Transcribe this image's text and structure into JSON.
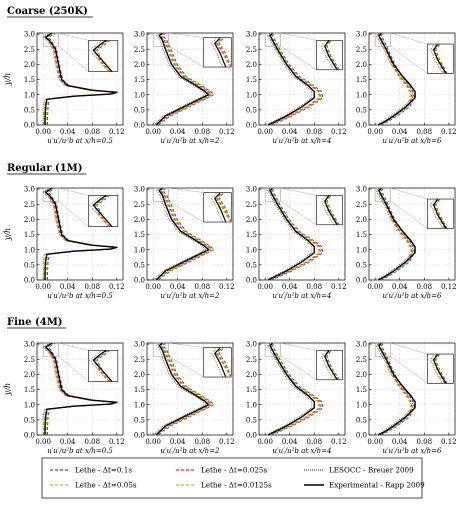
{
  "colors": {
    "lethe_dt_0.1s": "#2a4fcf",
    "lethe_dt_0.05s": "#8fd12e",
    "lethe_dt_0.025s": "#e02a2a",
    "lethe_dt_0.0125s": "#f0a020",
    "lesocc": "#222222",
    "experimental": "#000000",
    "grid": "#bbbbbb"
  },
  "legend": {
    "entries": [
      {
        "key": "lethe_dt_0.1s",
        "label": "Lethe - Δt=0.1s",
        "style": "dashed"
      },
      {
        "key": "lethe_dt_0.05s",
        "label": "Lethe - Δt=0.05s",
        "style": "dashed"
      },
      {
        "key": "lethe_dt_0.025s",
        "label": "Lethe - Δt=0.025s",
        "style": "dashed"
      },
      {
        "key": "lethe_dt_0.0125s",
        "label": "Lethe - Δt=0.0125s",
        "style": "dashed"
      },
      {
        "key": "lesocc",
        "label": "LESOCC - Breuer 2009",
        "style": "dotted"
      },
      {
        "key": "experimental",
        "label": "Experimental - Rapp 2009",
        "style": "solid"
      }
    ]
  },
  "rows": [
    {
      "title": "Coarse (250K)"
    },
    {
      "title": "Regular (1M)"
    },
    {
      "title": "Fine (4M)"
    }
  ],
  "axes": {
    "ylabel": "y/h",
    "yticks": [
      "0.0",
      "0.5",
      "1.0",
      "1.5",
      "2.0",
      "2.5",
      "3.0"
    ],
    "xticks": [
      "0.00",
      "0.04",
      "0.08",
      "0.12"
    ],
    "xlabels": [
      "u′u′/u²b at x/h=0.5",
      "u′u′/u²b at x/h=2",
      "u′u′/u²b at x/h=4",
      "u′u′/u²b at x/h=6"
    ]
  },
  "chart_data": {
    "type": "line",
    "layout": "3 rows (mesh) × 4 columns (x/h station) with zoomed insets near the top wall",
    "ylabel": "y/h",
    "xlim": [
      -0.01,
      0.13
    ],
    "ylim": [
      0,
      3.036
    ],
    "grid": true,
    "legend_placement": "bottom",
    "stations": [
      "x/h=0.5",
      "x/h=2",
      "x/h=4",
      "x/h=6"
    ],
    "meshes": [
      "Coarse (250K)",
      "Regular (1M)",
      "Fine (4M)"
    ],
    "profiles": {
      "x/h=0.5": {
        "y": [
          0,
          0.2,
          0.6,
          0.85,
          0.95,
          1.02,
          1.08,
          1.15,
          1.3,
          1.5,
          2.0,
          2.5,
          2.75,
          2.9,
          2.98,
          3.036
        ],
        "experimental": [
          0.003,
          0.003,
          0.004,
          0.006,
          0.05,
          0.11,
          0.12,
          0.08,
          0.04,
          0.03,
          0.025,
          0.02,
          0.012,
          0.004,
          0.01,
          0.015
        ],
        "lethe": [
          0.003,
          0.003,
          0.004,
          0.006,
          0.05,
          0.105,
          0.118,
          0.075,
          0.038,
          0.028,
          0.022,
          0.018,
          0.01,
          0.005,
          0.012,
          0.016
        ]
      },
      "x/h=2": {
        "y": [
          0,
          0.1,
          0.3,
          0.5,
          0.7,
          0.9,
          1.0,
          1.1,
          1.3,
          1.6,
          2.0,
          2.5,
          2.8,
          2.95,
          3.036
        ],
        "experimental": [
          0.005,
          0.01,
          0.02,
          0.04,
          0.06,
          0.08,
          0.09,
          0.085,
          0.07,
          0.045,
          0.03,
          0.02,
          0.015,
          0.01,
          0.015
        ],
        "lethe": [
          0.005,
          0.01,
          0.025,
          0.045,
          0.065,
          0.085,
          0.095,
          0.09,
          0.075,
          0.05,
          0.035,
          0.025,
          0.018,
          0.012,
          0.016
        ]
      },
      "x/h=4": {
        "y": [
          0,
          0.1,
          0.3,
          0.6,
          0.9,
          1.1,
          1.3,
          1.6,
          2.0,
          2.5,
          2.8,
          2.95,
          3.036
        ],
        "experimental": [
          0.005,
          0.015,
          0.035,
          0.06,
          0.08,
          0.08,
          0.07,
          0.05,
          0.035,
          0.02,
          0.012,
          0.008,
          0.012
        ],
        "lethe": [
          0.005,
          0.018,
          0.04,
          0.068,
          0.09,
          0.088,
          0.075,
          0.052,
          0.035,
          0.02,
          0.012,
          0.008,
          0.012
        ]
      },
      "x/h=6": {
        "y": [
          0,
          0.1,
          0.3,
          0.6,
          0.9,
          1.1,
          1.3,
          1.6,
          2.0,
          2.5,
          2.8,
          2.95,
          3.036
        ],
        "experimental": [
          0.005,
          0.015,
          0.03,
          0.05,
          0.065,
          0.065,
          0.058,
          0.045,
          0.03,
          0.018,
          0.01,
          0.006,
          0.01
        ],
        "lethe": [
          0.005,
          0.016,
          0.032,
          0.052,
          0.06,
          0.058,
          0.052,
          0.04,
          0.028,
          0.017,
          0.01,
          0.006,
          0.01
        ]
      }
    }
  }
}
